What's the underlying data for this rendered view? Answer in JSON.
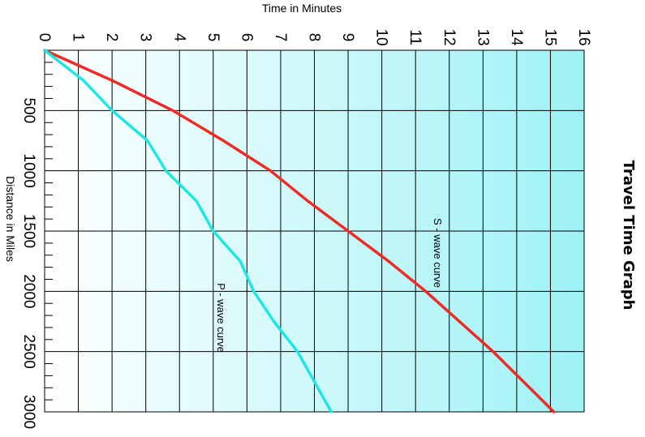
{
  "chart_data": {
    "type": "line",
    "title": "Travel Time Graph",
    "xlabel": "Distance in Miles",
    "ylabel": "Time in Minutes",
    "xlim": [
      0,
      3000
    ],
    "ylim": [
      0,
      16
    ],
    "x_ticks": [
      "500",
      "1000",
      "1500",
      "2000",
      "2500",
      "3000"
    ],
    "y_ticks": [
      "0",
      "1",
      "2",
      "3",
      "4",
      "5",
      "6",
      "7",
      "8",
      "9",
      "10",
      "11",
      "12",
      "13",
      "14",
      "15",
      "16"
    ],
    "grid": true,
    "series": [
      {
        "name": "S - wave curve",
        "color": "#ee2b24",
        "points": [
          [
            0,
            0
          ],
          [
            250,
            2.0
          ],
          [
            500,
            3.8
          ],
          [
            750,
            5.3
          ],
          [
            1000,
            6.7
          ],
          [
            1250,
            7.8
          ],
          [
            1500,
            9.0
          ],
          [
            1750,
            10.2
          ],
          [
            2000,
            11.3
          ],
          [
            2250,
            12.3
          ],
          [
            2500,
            13.3
          ],
          [
            2750,
            14.2
          ],
          [
            3000,
            15.1
          ]
        ]
      },
      {
        "name": "P - wave curve",
        "color": "#1fe6e6",
        "points": [
          [
            0,
            0
          ],
          [
            250,
            1.15
          ],
          [
            500,
            2.0
          ],
          [
            750,
            3.05
          ],
          [
            1000,
            3.6
          ],
          [
            1250,
            4.5
          ],
          [
            1500,
            5.0
          ],
          [
            1750,
            5.8
          ],
          [
            2000,
            6.2
          ],
          [
            2250,
            6.8
          ],
          [
            2500,
            7.5
          ],
          [
            2750,
            8.0
          ],
          [
            3000,
            8.5
          ]
        ]
      }
    ]
  }
}
